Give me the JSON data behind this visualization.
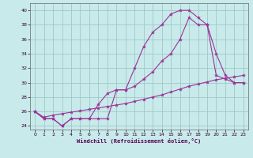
{
  "xlabel": "Windchill (Refroidissement éolien,°C)",
  "background_color": "#c8eaea",
  "grid_color": "#a0c8c8",
  "line_color": "#993399",
  "xlim": [
    -0.5,
    23.5
  ],
  "ylim": [
    23.5,
    41
  ],
  "xticks": [
    0,
    1,
    2,
    3,
    4,
    5,
    6,
    7,
    8,
    9,
    10,
    11,
    12,
    13,
    14,
    15,
    16,
    17,
    18,
    19,
    20,
    21,
    22,
    23
  ],
  "yticks": [
    24,
    26,
    28,
    30,
    32,
    34,
    36,
    38,
    40
  ],
  "series1_x": [
    0,
    1,
    2,
    3,
    4,
    5,
    6,
    7,
    8,
    9,
    10,
    11,
    12,
    13,
    14,
    15,
    16,
    17,
    18,
    19,
    20,
    21,
    22,
    23
  ],
  "series1_y": [
    26,
    25,
    25,
    24,
    25,
    25,
    25,
    25,
    25,
    29,
    29,
    32,
    35,
    37,
    38,
    39.5,
    40,
    40,
    39,
    38,
    34,
    31,
    30,
    30
  ],
  "series2_x": [
    0,
    1,
    2,
    3,
    4,
    5,
    6,
    7,
    8,
    9,
    10,
    11,
    12,
    13,
    14,
    15,
    16,
    17,
    18,
    19,
    20,
    21,
    22,
    23
  ],
  "series2_y": [
    26,
    25,
    25,
    24,
    25,
    25,
    25,
    27,
    28.5,
    29,
    29,
    29.5,
    30.5,
    31.5,
    33,
    34,
    36,
    39,
    38,
    38,
    31,
    30.5,
    30,
    30
  ],
  "series3_x": [
    0,
    1,
    2,
    3,
    4,
    5,
    6,
    7,
    8,
    9,
    10,
    11,
    12,
    13,
    14,
    15,
    16,
    17,
    18,
    19,
    20,
    21,
    22,
    23
  ],
  "series3_y": [
    26,
    25.2,
    25.5,
    25.7,
    25.9,
    26.1,
    26.3,
    26.5,
    26.7,
    26.9,
    27.1,
    27.4,
    27.7,
    28.0,
    28.3,
    28.7,
    29.1,
    29.5,
    29.8,
    30.1,
    30.4,
    30.6,
    30.8,
    31.0
  ]
}
